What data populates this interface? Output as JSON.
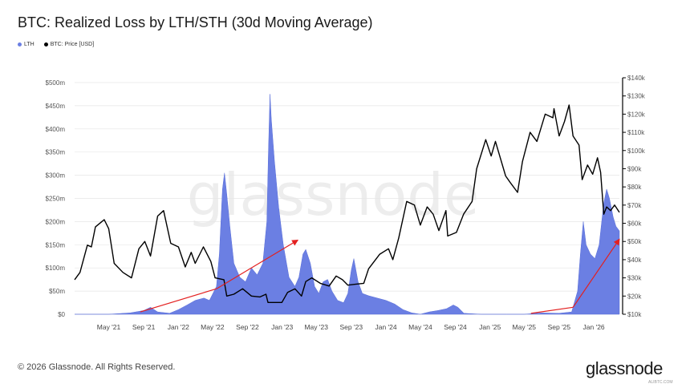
{
  "header": {
    "title": "BTC: Realized Loss by LTH/STH (30d Moving Average)"
  },
  "legend": {
    "items": [
      {
        "label": "LTH",
        "color": "#6b7fe3"
      },
      {
        "label": "BTC: Price [USD]",
        "color": "#000000"
      }
    ]
  },
  "footer": {
    "copyright": "© 2026 Glassnode. All Rights Reserved.",
    "logo": "glassnode",
    "watermark": "ALIBTC.COM"
  },
  "watermark_text": "glassnode",
  "colors": {
    "lth": "#6b7fe3",
    "price": "#000000",
    "arrow": "#e32020",
    "grid": "#e6e6e6"
  },
  "chart_data": {
    "type": "area",
    "title": "BTC: Realized Loss by LTH/STH (30d Moving Average)",
    "x_start": "2021-01-01",
    "x_end": "2026-04-01",
    "x_ticks": [
      "May '21",
      "Sep '21",
      "Jan '22",
      "May '22",
      "Sep '22",
      "Jan '23",
      "May '23",
      "Sep '23",
      "Jan '24",
      "May '24",
      "Sep '24",
      "Jan '25",
      "May '25",
      "Sep '25",
      "Jan '26"
    ],
    "y_left": {
      "ylim": [
        0,
        500
      ],
      "ticks": [
        0,
        50,
        100,
        150,
        200,
        250,
        300,
        350,
        400,
        450,
        500
      ],
      "tick_labels": [
        "$0",
        "$50m",
        "$100m",
        "$150m",
        "$200m",
        "$250m",
        "$300m",
        "$350m",
        "$400m",
        "$450m",
        "$500m"
      ]
    },
    "y_right": {
      "ylim": [
        10000,
        140000
      ],
      "ticks": [
        10000,
        20000,
        30000,
        40000,
        50000,
        60000,
        70000,
        80000,
        90000,
        100000,
        110000,
        120000,
        130000,
        140000
      ],
      "tick_labels": [
        "$10k",
        "$20k",
        "$30k",
        "$40k",
        "$50k",
        "$60k",
        "$70k",
        "$80k",
        "$90k",
        "$100k",
        "$110k",
        "$120k",
        "$130k",
        "$140k"
      ]
    },
    "grid": true,
    "legend_position": "top-left",
    "series": [
      {
        "name": "LTH",
        "axis": "left",
        "points": [
          [
            "2021-01-01",
            0
          ],
          [
            "2021-05-01",
            0
          ],
          [
            "2021-07-15",
            3
          ],
          [
            "2021-09-01",
            8
          ],
          [
            "2021-09-25",
            15
          ],
          [
            "2021-10-20",
            5
          ],
          [
            "2021-12-01",
            2
          ],
          [
            "2022-01-01",
            10
          ],
          [
            "2022-02-01",
            20
          ],
          [
            "2022-03-01",
            30
          ],
          [
            "2022-04-01",
            35
          ],
          [
            "2022-04-20",
            30
          ],
          [
            "2022-05-15",
            60
          ],
          [
            "2022-05-25",
            130
          ],
          [
            "2022-06-05",
            270
          ],
          [
            "2022-06-12",
            305
          ],
          [
            "2022-06-20",
            260
          ],
          [
            "2022-07-01",
            190
          ],
          [
            "2022-07-15",
            110
          ],
          [
            "2022-08-05",
            80
          ],
          [
            "2022-08-25",
            70
          ],
          [
            "2022-09-15",
            100
          ],
          [
            "2022-10-05",
            85
          ],
          [
            "2022-10-25",
            110
          ],
          [
            "2022-11-08",
            200
          ],
          [
            "2022-11-14",
            360
          ],
          [
            "2022-11-19",
            475
          ],
          [
            "2022-11-24",
            420
          ],
          [
            "2022-12-05",
            330
          ],
          [
            "2022-12-20",
            230
          ],
          [
            "2023-01-05",
            150
          ],
          [
            "2023-01-25",
            80
          ],
          [
            "2023-02-15",
            60
          ],
          [
            "2023-03-01",
            80
          ],
          [
            "2023-03-15",
            130
          ],
          [
            "2023-03-25",
            140
          ],
          [
            "2023-04-10",
            110
          ],
          [
            "2023-04-25",
            60
          ],
          [
            "2023-05-10",
            45
          ],
          [
            "2023-05-25",
            70
          ],
          [
            "2023-06-10",
            75
          ],
          [
            "2023-06-25",
            50
          ],
          [
            "2023-07-15",
            30
          ],
          [
            "2023-08-05",
            25
          ],
          [
            "2023-08-20",
            45
          ],
          [
            "2023-09-01",
            95
          ],
          [
            "2023-09-10",
            120
          ],
          [
            "2023-09-25",
            70
          ],
          [
            "2023-10-10",
            45
          ],
          [
            "2023-11-01",
            40
          ],
          [
            "2023-12-01",
            35
          ],
          [
            "2024-01-01",
            30
          ],
          [
            "2024-02-01",
            22
          ],
          [
            "2024-03-01",
            10
          ],
          [
            "2024-04-01",
            3
          ],
          [
            "2024-05-01",
            0
          ],
          [
            "2024-06-01",
            5
          ],
          [
            "2024-07-01",
            8
          ],
          [
            "2024-08-01",
            12
          ],
          [
            "2024-08-25",
            20
          ],
          [
            "2024-09-10",
            15
          ],
          [
            "2024-10-01",
            2
          ],
          [
            "2024-12-01",
            0
          ],
          [
            "2025-03-01",
            0
          ],
          [
            "2025-05-01",
            0
          ],
          [
            "2025-07-01",
            3
          ],
          [
            "2025-09-01",
            2
          ],
          [
            "2025-10-15",
            5
          ],
          [
            "2025-11-05",
            50
          ],
          [
            "2025-11-15",
            130
          ],
          [
            "2025-11-25",
            200
          ],
          [
            "2025-12-05",
            150
          ],
          [
            "2025-12-20",
            130
          ],
          [
            "2026-01-05",
            120
          ],
          [
            "2026-01-20",
            150
          ],
          [
            "2026-02-05",
            240
          ],
          [
            "2026-02-15",
            270
          ],
          [
            "2026-02-25",
            250
          ],
          [
            "2026-03-10",
            210
          ],
          [
            "2026-03-20",
            190
          ],
          [
            "2026-04-01",
            180
          ]
        ]
      },
      {
        "name": "BTC: Price [USD]",
        "axis": "right",
        "points": [
          [
            "2021-01-01",
            29000
          ],
          [
            "2021-01-20",
            33000
          ],
          [
            "2021-02-15",
            48000
          ],
          [
            "2021-03-01",
            47000
          ],
          [
            "2021-03-15",
            58000
          ],
          [
            "2021-04-15",
            62000
          ],
          [
            "2021-05-01",
            57000
          ],
          [
            "2021-05-20",
            38000
          ],
          [
            "2021-06-20",
            33000
          ],
          [
            "2021-07-20",
            30000
          ],
          [
            "2021-08-15",
            46000
          ],
          [
            "2021-09-05",
            50000
          ],
          [
            "2021-09-25",
            42000
          ],
          [
            "2021-10-20",
            64000
          ],
          [
            "2021-11-10",
            67000
          ],
          [
            "2021-12-05",
            49000
          ],
          [
            "2022-01-01",
            47000
          ],
          [
            "2022-01-25",
            36000
          ],
          [
            "2022-02-15",
            44000
          ],
          [
            "2022-03-01",
            38000
          ],
          [
            "2022-03-30",
            47000
          ],
          [
            "2022-04-25",
            39000
          ],
          [
            "2022-05-10",
            30000
          ],
          [
            "2022-06-10",
            29000
          ],
          [
            "2022-06-20",
            20000
          ],
          [
            "2022-07-15",
            21000
          ],
          [
            "2022-08-15",
            24000
          ],
          [
            "2022-09-15",
            20000
          ],
          [
            "2022-10-15",
            19500
          ],
          [
            "2022-11-05",
            21000
          ],
          [
            "2022-11-12",
            16500
          ],
          [
            "2022-12-31",
            16500
          ],
          [
            "2023-01-20",
            22000
          ],
          [
            "2023-02-15",
            24000
          ],
          [
            "2023-03-10",
            20000
          ],
          [
            "2023-03-25",
            28000
          ],
          [
            "2023-04-15",
            30000
          ],
          [
            "2023-05-15",
            27000
          ],
          [
            "2023-06-15",
            25500
          ],
          [
            "2023-07-10",
            31000
          ],
          [
            "2023-08-01",
            29000
          ],
          [
            "2023-08-20",
            26000
          ],
          [
            "2023-09-15",
            26500
          ],
          [
            "2023-10-15",
            27000
          ],
          [
            "2023-11-01",
            35000
          ],
          [
            "2023-12-10",
            43000
          ],
          [
            "2024-01-10",
            46000
          ],
          [
            "2024-01-25",
            40000
          ],
          [
            "2024-02-15",
            52000
          ],
          [
            "2024-03-14",
            72000
          ],
          [
            "2024-04-10",
            70000
          ],
          [
            "2024-05-01",
            59000
          ],
          [
            "2024-05-25",
            69000
          ],
          [
            "2024-06-15",
            65000
          ],
          [
            "2024-07-05",
            56000
          ],
          [
            "2024-07-30",
            67000
          ],
          [
            "2024-08-05",
            53000
          ],
          [
            "2024-09-05",
            55000
          ],
          [
            "2024-09-30",
            65000
          ],
          [
            "2024-10-30",
            72000
          ],
          [
            "2024-11-15",
            90000
          ],
          [
            "2024-12-17",
            106000
          ],
          [
            "2025-01-05",
            97000
          ],
          [
            "2025-01-20",
            105000
          ],
          [
            "2025-02-25",
            86000
          ],
          [
            "2025-03-15",
            82000
          ],
          [
            "2025-04-08",
            77000
          ],
          [
            "2025-04-25",
            94000
          ],
          [
            "2025-05-22",
            110000
          ],
          [
            "2025-06-15",
            105000
          ],
          [
            "2025-07-14",
            120000
          ],
          [
            "2025-08-10",
            118000
          ],
          [
            "2025-08-14",
            123000
          ],
          [
            "2025-09-01",
            108000
          ],
          [
            "2025-09-20",
            116000
          ],
          [
            "2025-10-06",
            125000
          ],
          [
            "2025-10-20",
            108000
          ],
          [
            "2025-11-10",
            103000
          ],
          [
            "2025-11-21",
            84000
          ],
          [
            "2025-12-10",
            92000
          ],
          [
            "2025-12-28",
            87000
          ],
          [
            "2026-01-14",
            96000
          ],
          [
            "2026-01-25",
            88000
          ],
          [
            "2026-02-05",
            65000
          ],
          [
            "2026-02-15",
            69000
          ],
          [
            "2026-03-01",
            67000
          ],
          [
            "2026-03-15",
            70000
          ],
          [
            "2026-04-01",
            66000
          ]
        ]
      }
    ],
    "annotations": [
      {
        "type": "arrow",
        "color": "#e32020",
        "from": [
          "2021-08-20",
          5
        ],
        "to": [
          "2022-05-15",
          55
        ]
      },
      {
        "type": "arrow",
        "color": "#e32020",
        "from": [
          "2022-05-15",
          55
        ],
        "to": [
          "2023-02-25",
          160
        ]
      },
      {
        "type": "arrow",
        "color": "#e32020",
        "from": [
          "2025-05-25",
          2
        ],
        "to": [
          "2025-10-20",
          15
        ]
      },
      {
        "type": "arrow",
        "color": "#e32020",
        "from": [
          "2025-10-20",
          15
        ],
        "to": [
          "2026-04-01",
          162
        ]
      }
    ]
  }
}
